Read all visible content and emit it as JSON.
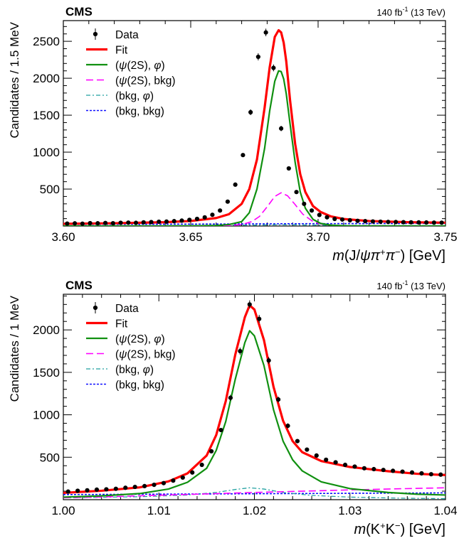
{
  "chart_data": [
    {
      "type": "line",
      "experiment": "CMS",
      "lumi": "140 fb",
      "lumi_sup": "-1",
      "energy": " (13 TeV)",
      "ylabel": "Candidates / 1.5 MeV",
      "xlabel_parts": [
        "m",
        "(J/",
        "ψπ",
        "+",
        "π",
        "−",
        ") [GeV]"
      ],
      "xlim": [
        3.6,
        3.75
      ],
      "ylim": [
        0,
        2780
      ],
      "x_ticks": [
        "3.60",
        "3.65",
        "3.70",
        "3.75"
      ],
      "y_ticks": [
        "500",
        "1000",
        "1500",
        "2000",
        "2500"
      ],
      "legend_position": "top-left",
      "legend": [
        {
          "label_parts": [
            "Data"
          ],
          "style": "data"
        },
        {
          "label_parts": [
            "Fit"
          ],
          "style": "fit"
        },
        {
          "label_parts": [
            "(",
            "ψ",
            "(2S), ",
            "φ",
            ")"
          ],
          "style": "sig"
        },
        {
          "label_parts": [
            "(",
            "ψ",
            "(2S), bkg)"
          ],
          "style": "psibkg"
        },
        {
          "label_parts": [
            "(bkg, ",
            "φ",
            ")"
          ],
          "style": "bkgphi"
        },
        {
          "label_parts": [
            "(bkg, bkg)"
          ],
          "style": "bkgbkg"
        }
      ],
      "colors": {
        "data": "#000000",
        "fit": "#ff0000",
        "sig": "#109010",
        "psibkg": "#ff00ff",
        "bkgphi": "#20a0a0",
        "bkgbkg": "#1010ff"
      },
      "series": [
        {
          "key": "data",
          "x": [
            3.6015,
            3.6045,
            3.6075,
            3.6105,
            3.6135,
            3.6165,
            3.6195,
            3.6225,
            3.6255,
            3.6285,
            3.6315,
            3.6345,
            3.6375,
            3.6405,
            3.6435,
            3.6465,
            3.6495,
            3.6525,
            3.6555,
            3.6585,
            3.6615,
            3.6645,
            3.6675,
            3.6705,
            3.6735,
            3.6765,
            3.6795,
            3.6825,
            3.6855,
            3.6885,
            3.6915,
            3.6945,
            3.6975,
            3.7005,
            3.7035,
            3.7065,
            3.7095,
            3.7125,
            3.7155,
            3.7185,
            3.7215,
            3.7245,
            3.7275,
            3.7305,
            3.7335,
            3.7365,
            3.7395,
            3.7425,
            3.7455,
            3.7485
          ],
          "y": [
            33,
            36,
            31,
            39,
            37,
            41,
            38,
            44,
            46,
            43,
            50,
            53,
            58,
            60,
            66,
            73,
            83,
            97,
            117,
            152,
            210,
            330,
            560,
            960,
            1540,
            2290,
            2620,
            2140,
            1320,
            780,
            460,
            300,
            210,
            150,
            118,
            96,
            88,
            78,
            70,
            66,
            62,
            58,
            55,
            54,
            52,
            50,
            49,
            48,
            46,
            45
          ]
        },
        {
          "key": "fit",
          "x": [
            3.6,
            3.62,
            3.64,
            3.65,
            3.66,
            3.665,
            3.67,
            3.673,
            3.676,
            3.679,
            3.681,
            3.683,
            3.6845,
            3.6855,
            3.6865,
            3.6875,
            3.689,
            3.691,
            3.693,
            3.695,
            3.698,
            3.701,
            3.705,
            3.71,
            3.72,
            3.735,
            3.75
          ],
          "y": [
            30,
            38,
            52,
            68,
            108,
            160,
            300,
            500,
            900,
            1600,
            2150,
            2560,
            2650,
            2620,
            2480,
            2230,
            1700,
            1110,
            700,
            460,
            270,
            190,
            130,
            95,
            68,
            52,
            45
          ]
        },
        {
          "key": "sig",
          "x": [
            3.6,
            3.63,
            3.65,
            3.66,
            3.665,
            3.67,
            3.673,
            3.676,
            3.679,
            3.681,
            3.683,
            3.6845,
            3.6855,
            3.6865,
            3.6875,
            3.689,
            3.691,
            3.693,
            3.695,
            3.698,
            3.701,
            3.705,
            3.71,
            3.72,
            3.75
          ],
          "y": [
            0,
            0,
            2,
            8,
            20,
            60,
            180,
            500,
            1050,
            1560,
            1960,
            2100,
            2090,
            1990,
            1790,
            1380,
            860,
            460,
            240,
            90,
            35,
            12,
            4,
            1,
            0
          ]
        },
        {
          "key": "psibkg",
          "x": [
            3.6,
            3.65,
            3.665,
            3.67,
            3.674,
            3.677,
            3.68,
            3.683,
            3.6855,
            3.688,
            3.691,
            3.694,
            3.698,
            3.702,
            3.71,
            3.75
          ],
          "y": [
            0,
            1,
            6,
            20,
            60,
            130,
            260,
            400,
            450,
            410,
            290,
            160,
            60,
            20,
            4,
            0
          ]
        },
        {
          "key": "bkgphi",
          "x": [
            3.6,
            3.64,
            3.66,
            3.675,
            3.6855,
            3.695,
            3.71,
            3.73,
            3.75
          ],
          "y": [
            3,
            5,
            8,
            12,
            18,
            14,
            9,
            6,
            5
          ]
        },
        {
          "key": "bkgbkg",
          "x": [
            3.6,
            3.65,
            3.7,
            3.75
          ],
          "y": [
            22,
            26,
            32,
            36
          ]
        }
      ]
    },
    {
      "type": "line",
      "experiment": "CMS",
      "lumi": "140 fb",
      "lumi_sup": "-1",
      "energy": " (13 TeV)",
      "ylabel": "Candidates / 1 MeV",
      "xlabel_parts": [
        "m",
        "(K",
        "+",
        "K",
        "−",
        ") [GeV]"
      ],
      "xlim": [
        1.0,
        1.04
      ],
      "ylim": [
        0,
        2420
      ],
      "x_ticks": [
        "1.00",
        "1.01",
        "1.02",
        "1.03",
        "1.04"
      ],
      "y_ticks": [
        "500",
        "1000",
        "1500",
        "2000"
      ],
      "legend_position": "top-left",
      "legend": [
        {
          "label_parts": [
            "Data"
          ],
          "style": "data"
        },
        {
          "label_parts": [
            "Fit"
          ],
          "style": "fit"
        },
        {
          "label_parts": [
            "(",
            "ψ",
            "(2S), ",
            "φ",
            ")"
          ],
          "style": "sig"
        },
        {
          "label_parts": [
            "(",
            "ψ",
            "(2S), bkg)"
          ],
          "style": "psibkg"
        },
        {
          "label_parts": [
            "(bkg, ",
            "φ",
            ")"
          ],
          "style": "bkgphi"
        },
        {
          "label_parts": [
            "(bkg, bkg)"
          ],
          "style": "bkgbkg"
        }
      ],
      "colors": {
        "data": "#000000",
        "fit": "#ff0000",
        "sig": "#109010",
        "psibkg": "#ff00ff",
        "bkgphi": "#20a0a0",
        "bkgbkg": "#1010ff"
      },
      "series": [
        {
          "key": "data",
          "x": [
            1.0005,
            1.0015,
            1.0025,
            1.0035,
            1.0045,
            1.0055,
            1.0065,
            1.0075,
            1.0085,
            1.0095,
            1.0105,
            1.0115,
            1.0125,
            1.0135,
            1.0145,
            1.0155,
            1.0165,
            1.0175,
            1.0185,
            1.0195,
            1.0205,
            1.0215,
            1.0225,
            1.0235,
            1.0245,
            1.0255,
            1.0265,
            1.0275,
            1.0285,
            1.0295,
            1.0305,
            1.0315,
            1.0325,
            1.0335,
            1.0345,
            1.0355,
            1.0365,
            1.0375,
            1.0385,
            1.0395
          ],
          "y": [
            95,
            105,
            110,
            118,
            122,
            128,
            140,
            150,
            160,
            175,
            195,
            225,
            260,
            320,
            410,
            570,
            820,
            1200,
            1750,
            2300,
            2130,
            1640,
            1180,
            870,
            690,
            590,
            520,
            470,
            440,
            410,
            390,
            370,
            360,
            350,
            340,
            330,
            320,
            310,
            300,
            295
          ]
        },
        {
          "key": "fit",
          "x": [
            1.0,
            1.004,
            1.008,
            1.011,
            1.013,
            1.015,
            1.016,
            1.017,
            1.018,
            1.019,
            1.0195,
            1.02,
            1.021,
            1.022,
            1.023,
            1.024,
            1.025,
            1.027,
            1.03,
            1.034,
            1.037,
            1.04
          ],
          "y": [
            80,
            105,
            145,
            215,
            310,
            520,
            760,
            1160,
            1710,
            2150,
            2290,
            2240,
            1880,
            1330,
            930,
            690,
            560,
            455,
            385,
            335,
            305,
            290
          ]
        },
        {
          "key": "sig",
          "x": [
            1.0,
            1.004,
            1.008,
            1.011,
            1.013,
            1.015,
            1.016,
            1.017,
            1.018,
            1.019,
            1.0195,
            1.02,
            1.021,
            1.022,
            1.023,
            1.024,
            1.025,
            1.027,
            1.03,
            1.034,
            1.037,
            1.04
          ],
          "y": [
            30,
            45,
            72,
            125,
            205,
            370,
            580,
            920,
            1420,
            1850,
            1990,
            1930,
            1580,
            1060,
            690,
            470,
            340,
            210,
            130,
            85,
            65,
            55
          ]
        },
        {
          "key": "psibkg",
          "x": [
            1.0,
            1.005,
            1.01,
            1.015,
            1.02,
            1.025,
            1.03,
            1.035,
            1.04
          ],
          "y": [
            22,
            35,
            52,
            68,
            85,
            100,
            115,
            128,
            140
          ]
        },
        {
          "key": "bkgphi",
          "x": [
            1.0,
            1.008,
            1.013,
            1.016,
            1.018,
            1.0195,
            1.021,
            1.023,
            1.026,
            1.03,
            1.035,
            1.04
          ],
          "y": [
            22,
            35,
            55,
            85,
            120,
            140,
            125,
            85,
            50,
            30,
            18,
            12
          ]
        },
        {
          "key": "bkgbkg",
          "x": [
            1.0,
            1.01,
            1.02,
            1.03,
            1.04
          ],
          "y": [
            60,
            65,
            70,
            75,
            80
          ]
        }
      ]
    }
  ]
}
